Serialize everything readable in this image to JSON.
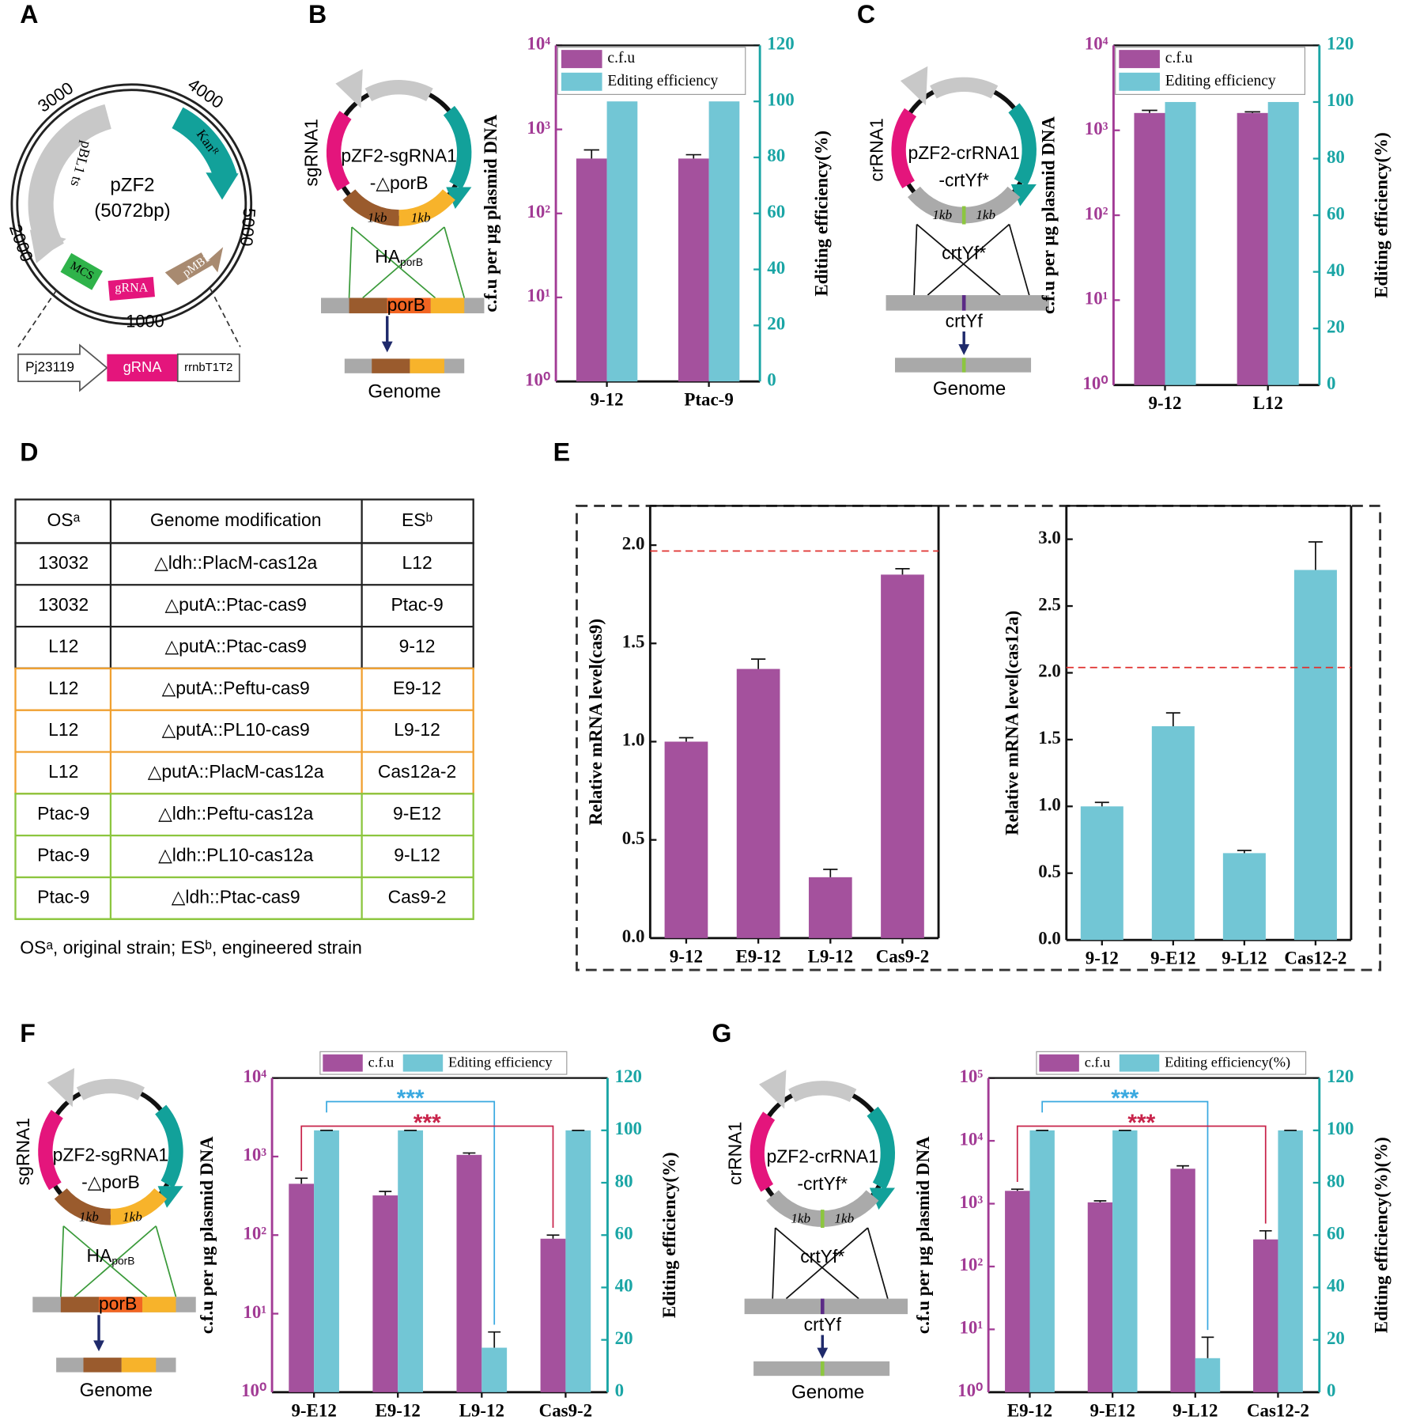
{
  "panel_labels": [
    "A",
    "B",
    "C",
    "D",
    "E",
    "F",
    "G"
  ],
  "plasmid_map": {
    "name": "pZF2",
    "size": "(5072bp)",
    "coordinates": [
      "1000",
      "2000",
      "3000",
      "4000",
      "5000"
    ],
    "features": {
      "kan": "Kanᴿ",
      "rep": "pBL1 ts",
      "ori": "pMB1",
      "mcs": "MCS",
      "grna": "gRNA"
    },
    "cassette": [
      "Pj23119",
      "gRNA",
      "rrnbT1T2"
    ]
  },
  "diagrams": [
    {
      "guide": "sgRNA1",
      "plasmid": "pZF2-sgRNA1",
      "target": "-△porB",
      "arm_left": "1kb",
      "arm_right": "1kb",
      "homology": "HA",
      "homology_sub": "porB",
      "locus": "porB",
      "genome": "Genome"
    },
    {
      "guide": "crRNA1",
      "plasmid": "pZF2-crRNA1",
      "target": "-crtYf*",
      "arm_left": "1kb",
      "arm_right": "1kb",
      "mutant": "crtYf*",
      "locus": "crtYf",
      "genome": "Genome"
    },
    {
      "guide": "sgRNA1",
      "plasmid": "pZF2-sgRNA1",
      "target": "-△porB",
      "arm_left": "1kb",
      "arm_right": "1kb",
      "homology": "HA",
      "homology_sub": "porB",
      "locus": "porB",
      "genome": "Genome"
    },
    {
      "guide": "crRNA1",
      "plasmid": "pZF2-crRNA1",
      "target": "-crtYf*",
      "arm_left": "1kb",
      "arm_right": "1kb",
      "mutant": "crtYf*",
      "locus": "crtYf",
      "genome": "Genome"
    }
  ],
  "table": {
    "header": [
      "OSᵃ",
      "Genome modification",
      "ESᵇ"
    ],
    "groups": [
      {
        "color": "#222222",
        "rows": [
          [
            "13032",
            "△ldh::PlacM-cas12a",
            "L12"
          ],
          [
            "13032",
            "△putA::Ptac-cas9",
            "Ptac-9"
          ],
          [
            "L12",
            "△putA::Ptac-cas9",
            "9-12"
          ]
        ]
      },
      {
        "color": "#f0a030",
        "rows": [
          [
            "L12",
            "△putA::Peftu-cas9",
            "E9-12"
          ],
          [
            "L12",
            "△putA::PL10-cas9",
            "L9-12"
          ],
          [
            "L12",
            "△putA::PlacM-cas12a",
            "Cas12a-2"
          ]
        ]
      },
      {
        "color": "#8cc63f",
        "rows": [
          [
            "Ptac-9",
            "△ldh::Peftu-cas12a",
            "9-E12"
          ],
          [
            "Ptac-9",
            "△ldh::PL10-cas12a",
            "9-L12"
          ],
          [
            "Ptac-9",
            "△ldh::Ptac-cas9",
            "Cas9-2"
          ]
        ]
      }
    ],
    "footnote": "OSᵃ, original strain; ESᵇ, engineered strain"
  },
  "chart_data": [
    {
      "type": "dual_bar",
      "categories": [
        "9-12",
        "Ptac-9"
      ],
      "ylabel": "c.f.u per μg plasmid DNA",
      "y2label": "Editing efficiency(%)",
      "ylog": true,
      "ylim": [
        1,
        10000
      ],
      "yticks": [
        {
          "value": 1,
          "label": "10⁰"
        },
        {
          "value": 10,
          "label": "10¹"
        },
        {
          "value": 100,
          "label": "10²"
        },
        {
          "value": 1000,
          "label": "10³"
        },
        {
          "value": 10000,
          "label": "10⁴"
        }
      ],
      "y2lim": [
        0,
        120
      ],
      "y2ticks": [
        0,
        20,
        40,
        60,
        80,
        100,
        120
      ],
      "legend": "inside-top-left",
      "series": [
        {
          "name": "c.f.u",
          "color": "#a4519d",
          "values": [
            450,
            450
          ],
          "errors": [
            120,
            50
          ]
        },
        {
          "name": "Editing efficiency",
          "color": "#72c6d5",
          "axis": "y2",
          "values": [
            100,
            100
          ]
        }
      ]
    },
    {
      "type": "dual_bar",
      "categories": [
        "9-12",
        "L12"
      ],
      "ylabel": "c.f.u per μg plasmid DNA",
      "y2label": "Editing efficiency(%)",
      "ylog": true,
      "ylim": [
        1,
        10000
      ],
      "yticks": [
        {
          "value": 1,
          "label": "10⁰"
        },
        {
          "value": 10,
          "label": "10¹"
        },
        {
          "value": 100,
          "label": "10²"
        },
        {
          "value": 1000,
          "label": "10³"
        },
        {
          "value": 10000,
          "label": "10⁴"
        }
      ],
      "y2lim": [
        0,
        120
      ],
      "y2ticks": [
        0,
        20,
        40,
        60,
        80,
        100,
        120
      ],
      "legend": "inside-top-left",
      "series": [
        {
          "name": "c.f.u",
          "color": "#a4519d",
          "values": [
            1600,
            1600
          ],
          "errors": [
            120,
            50
          ]
        },
        {
          "name": "Editing efficiency",
          "color": "#72c6d5",
          "axis": "y2",
          "values": [
            100,
            100
          ]
        }
      ]
    },
    {
      "type": "bar",
      "categories": [
        "9-12",
        "E9-12",
        "L9-12",
        "Cas9-2"
      ],
      "ylabel": "Relative mRNA level(cas9)",
      "ylim": [
        0,
        2.2
      ],
      "yticks": [
        {
          "value": 0,
          "label": "0.0"
        },
        0.5,
        {
          "value": 1,
          "label": "1.0"
        },
        1.5,
        {
          "value": 2,
          "label": "2.0"
        }
      ],
      "color": "#a4519d",
      "values": [
        1.0,
        1.37,
        0.31,
        1.85
      ],
      "errors": [
        0.02,
        0.05,
        0.04,
        0.03
      ],
      "reference_line": {
        "value": 1.97,
        "color": "#e0312f"
      }
    },
    {
      "type": "bar",
      "categories": [
        "9-12",
        "9-E12",
        "9-L12",
        "Cas12-2"
      ],
      "ylabel": "Relative mRNA level(cas12a)",
      "ylim": [
        0,
        3.25
      ],
      "yticks": [
        {
          "value": 0,
          "label": "0.0"
        },
        0.5,
        {
          "value": 1,
          "label": "1.0"
        },
        1.5,
        {
          "value": 2,
          "label": "2.0"
        },
        2.5,
        {
          "value": 3,
          "label": "3.0"
        }
      ],
      "color": "#72c6d5",
      "values": [
        1.0,
        1.6,
        0.65,
        2.77
      ],
      "errors": [
        0.03,
        0.1,
        0.02,
        0.21
      ],
      "reference_line": {
        "value": 2.04,
        "color": "#e0312f"
      }
    },
    {
      "type": "dual_bar",
      "categories": [
        "9-E12",
        "E9-12",
        "L9-12",
        "Cas9-2"
      ],
      "ylabel": "c.f.u per μg plasmid DNA",
      "y2label": "Editing efficiency(%)",
      "ylog": true,
      "ylim": [
        1,
        10000
      ],
      "yticks": [
        {
          "value": 1,
          "label": "10⁰"
        },
        {
          "value": 10,
          "label": "10¹"
        },
        {
          "value": 100,
          "label": "10²"
        },
        {
          "value": 1000,
          "label": "10³"
        },
        {
          "value": 10000,
          "label": "10⁴"
        }
      ],
      "y2lim": [
        0,
        120
      ],
      "y2ticks": [
        0,
        20,
        40,
        60,
        80,
        100,
        120
      ],
      "legend": "top-outside",
      "series": [
        {
          "name": "c.f.u",
          "color": "#a4519d",
          "values": [
            450,
            320,
            1050,
            90
          ],
          "errors": [
            80,
            40,
            60,
            10
          ]
        },
        {
          "name": "Editing efficiency",
          "color": "#72c6d5",
          "axis": "y2",
          "values": [
            100,
            100,
            17,
            100
          ],
          "errors": [
            0,
            0,
            6,
            0
          ]
        }
      ],
      "annotations": [
        {
          "text": "***",
          "color": "#3aa9e0",
          "between": [
            "9-E12",
            "L9-12"
          ]
        },
        {
          "text": "***",
          "color": "#c8234a",
          "between": [
            "9-E12",
            "Cas9-2"
          ]
        }
      ]
    },
    {
      "type": "dual_bar",
      "categories": [
        "E9-12",
        "9-E12",
        "9-L12",
        "Cas12-2"
      ],
      "ylabel": "c.f.u per μg plasmid DNA",
      "y2label": "Editing efficiency(%)(%)",
      "ylog": true,
      "ylim": [
        1,
        100000
      ],
      "yticks": [
        {
          "value": 1,
          "label": "10⁰"
        },
        {
          "value": 10,
          "label": "10¹"
        },
        {
          "value": 100,
          "label": "10²"
        },
        {
          "value": 1000,
          "label": "10³"
        },
        {
          "value": 10000,
          "label": "10⁴"
        },
        {
          "value": 100000,
          "label": "10⁵"
        }
      ],
      "y2lim": [
        0,
        120
      ],
      "y2ticks": [
        0,
        20,
        40,
        60,
        80,
        100,
        120
      ],
      "legend": "top-outside",
      "series": [
        {
          "name": "c.f.u",
          "color": "#a4519d",
          "values": [
            1600,
            1050,
            3600,
            270
          ],
          "errors": [
            100,
            60,
            400,
            100
          ]
        },
        {
          "name": "Editing efficiency(%)",
          "color": "#72c6d5",
          "axis": "y2",
          "values": [
            100,
            100,
            13,
            100
          ],
          "errors": [
            0,
            0,
            8,
            0
          ]
        }
      ],
      "annotations": [
        {
          "text": "***",
          "color": "#3aa9e0",
          "between": [
            "E9-12",
            "9-L12"
          ]
        },
        {
          "text": "***",
          "color": "#c8234a",
          "between": [
            "E9-12",
            "Cas12-2"
          ]
        }
      ]
    }
  ]
}
